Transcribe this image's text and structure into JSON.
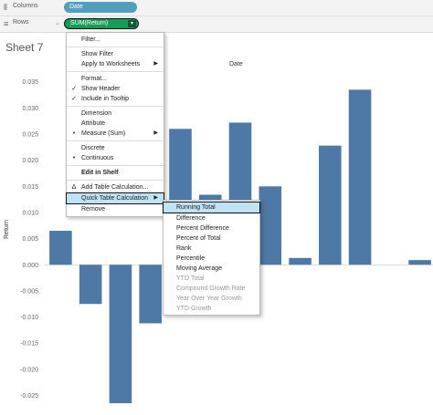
{
  "shelves": {
    "columns": {
      "label": "Columns",
      "pill": "Date"
    },
    "rows": {
      "label": "Rows",
      "pill": "SUM(Return)"
    }
  },
  "sheet_title": "Sheet 7",
  "chart_data": {
    "type": "bar",
    "column_header": "Date",
    "ylabel": "Return",
    "ylim": [
      -0.027,
      0.036
    ],
    "yticks": [
      "0.035",
      "0.030",
      "0.025",
      "0.020",
      "0.015",
      "0.010",
      "0.005",
      "0.000",
      "-0.005",
      "-0.010",
      "-0.015",
      "-0.020",
      "-0.025"
    ],
    "ytick_values": [
      0.035,
      0.03,
      0.025,
      0.02,
      0.015,
      0.01,
      0.005,
      0.0,
      -0.005,
      -0.01,
      -0.015,
      -0.02,
      -0.025
    ],
    "values": [
      0.0065,
      -0.0075,
      -0.0265,
      -0.0112,
      0.026,
      0.0134,
      0.0272,
      0.015,
      0.0013,
      0.0228,
      0.0335,
      0.0,
      0.0009
    ],
    "bar_color": "#4e79a7"
  },
  "context_menu": {
    "items": [
      {
        "label": "Filter...",
        "mark": "",
        "arrow": false
      },
      {
        "sep": true
      },
      {
        "label": "Show Filter",
        "mark": "",
        "arrow": false
      },
      {
        "label": "Apply to Worksheets",
        "mark": "",
        "arrow": true
      },
      {
        "sep": true
      },
      {
        "label": "Format...",
        "mark": "",
        "arrow": false
      },
      {
        "label": "Show Header",
        "mark": "✓",
        "arrow": false
      },
      {
        "label": "Include in Tooltip",
        "mark": "✓",
        "arrow": false
      },
      {
        "sep": true
      },
      {
        "label": "Dimension",
        "mark": "",
        "arrow": false
      },
      {
        "label": "Attribute",
        "mark": "",
        "arrow": false
      },
      {
        "label": "Measure (Sum)",
        "mark": "•",
        "arrow": true
      },
      {
        "sep": true
      },
      {
        "label": "Discrete",
        "mark": "",
        "arrow": false
      },
      {
        "label": "Continuous",
        "mark": "•",
        "arrow": false
      },
      {
        "sep": true
      },
      {
        "label": "Edit in Shelf",
        "mark": "",
        "arrow": false,
        "bold": true
      },
      {
        "sep": true
      },
      {
        "label": "Add Table Calculation...",
        "mark": "Δ",
        "arrow": false
      },
      {
        "label": "Quick Table Calculation",
        "mark": "",
        "arrow": true,
        "highlight": true
      },
      {
        "label": "Remove",
        "mark": "",
        "arrow": false
      }
    ]
  },
  "submenu": {
    "items": [
      {
        "label": "Running Total",
        "highlight": true
      },
      {
        "label": "Difference"
      },
      {
        "label": "Percent Difference"
      },
      {
        "label": "Percent of Total"
      },
      {
        "label": "Rank"
      },
      {
        "label": "Percentile"
      },
      {
        "label": "Moving Average"
      },
      {
        "label": "YTD Total",
        "disabled": true
      },
      {
        "label": "Compound Growth Rate",
        "disabled": true
      },
      {
        "label": "Year Over Year Growth",
        "disabled": true
      },
      {
        "label": "YTD Growth",
        "disabled": true
      }
    ]
  }
}
